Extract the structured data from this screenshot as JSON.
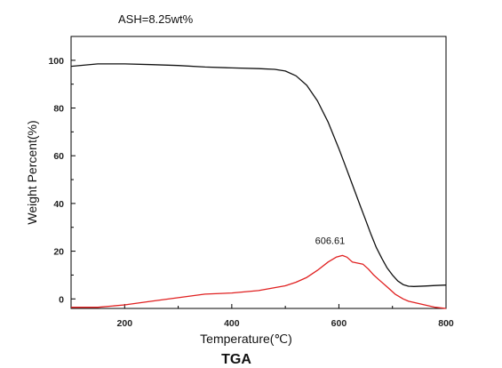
{
  "chart_data": {
    "type": "line",
    "title": "TGA",
    "annotation": "ASH=8.25wt%",
    "xlabel": "Temperature(℃)",
    "ylabel": "Weight Percent(%)",
    "xlim": [
      100,
      800
    ],
    "ylim": [
      -4,
      110
    ],
    "x_ticks": [
      200,
      400,
      600,
      800
    ],
    "y_ticks": [
      0,
      20,
      40,
      60,
      80,
      100
    ],
    "grid": false,
    "series": [
      {
        "color": "#111111",
        "x": [
          100,
          150,
          200,
          250,
          300,
          350,
          400,
          450,
          480,
          500,
          520,
          540,
          560,
          580,
          600,
          610,
          620,
          630,
          640,
          650,
          660,
          670,
          680,
          690,
          700,
          710,
          720,
          730,
          740,
          760,
          780,
          800
        ],
        "y": [
          97.5,
          98.5,
          98.5,
          98.2,
          97.8,
          97.2,
          96.8,
          96.5,
          96.2,
          95.5,
          93.5,
          89.5,
          83,
          74,
          63,
          57,
          51,
          45,
          39,
          33,
          27,
          21.5,
          17,
          13,
          10,
          7.5,
          6,
          5.3,
          5.2,
          5.4,
          5.6,
          5.8
        ]
      },
      {
        "color": "#e02020",
        "x": [
          100,
          150,
          200,
          250,
          300,
          350,
          400,
          450,
          500,
          520,
          540,
          560,
          580,
          595,
          606.61,
          615,
          625,
          635,
          645,
          655,
          665,
          675,
          690,
          705,
          720,
          730,
          740,
          760,
          780,
          800
        ],
        "y": [
          -3.5,
          -3.5,
          -2.5,
          -1,
          0.5,
          2,
          2.5,
          3.5,
          5.5,
          7,
          9,
          12,
          15.5,
          17.5,
          18.2,
          17.5,
          15.5,
          15,
          14.5,
          12.5,
          10,
          8,
          5,
          2,
          0,
          -1,
          -1.5,
          -2.5,
          -3.5,
          -4
        ]
      }
    ],
    "peak_label": "606.61",
    "peak_at": [
      606.61,
      18.2
    ]
  }
}
